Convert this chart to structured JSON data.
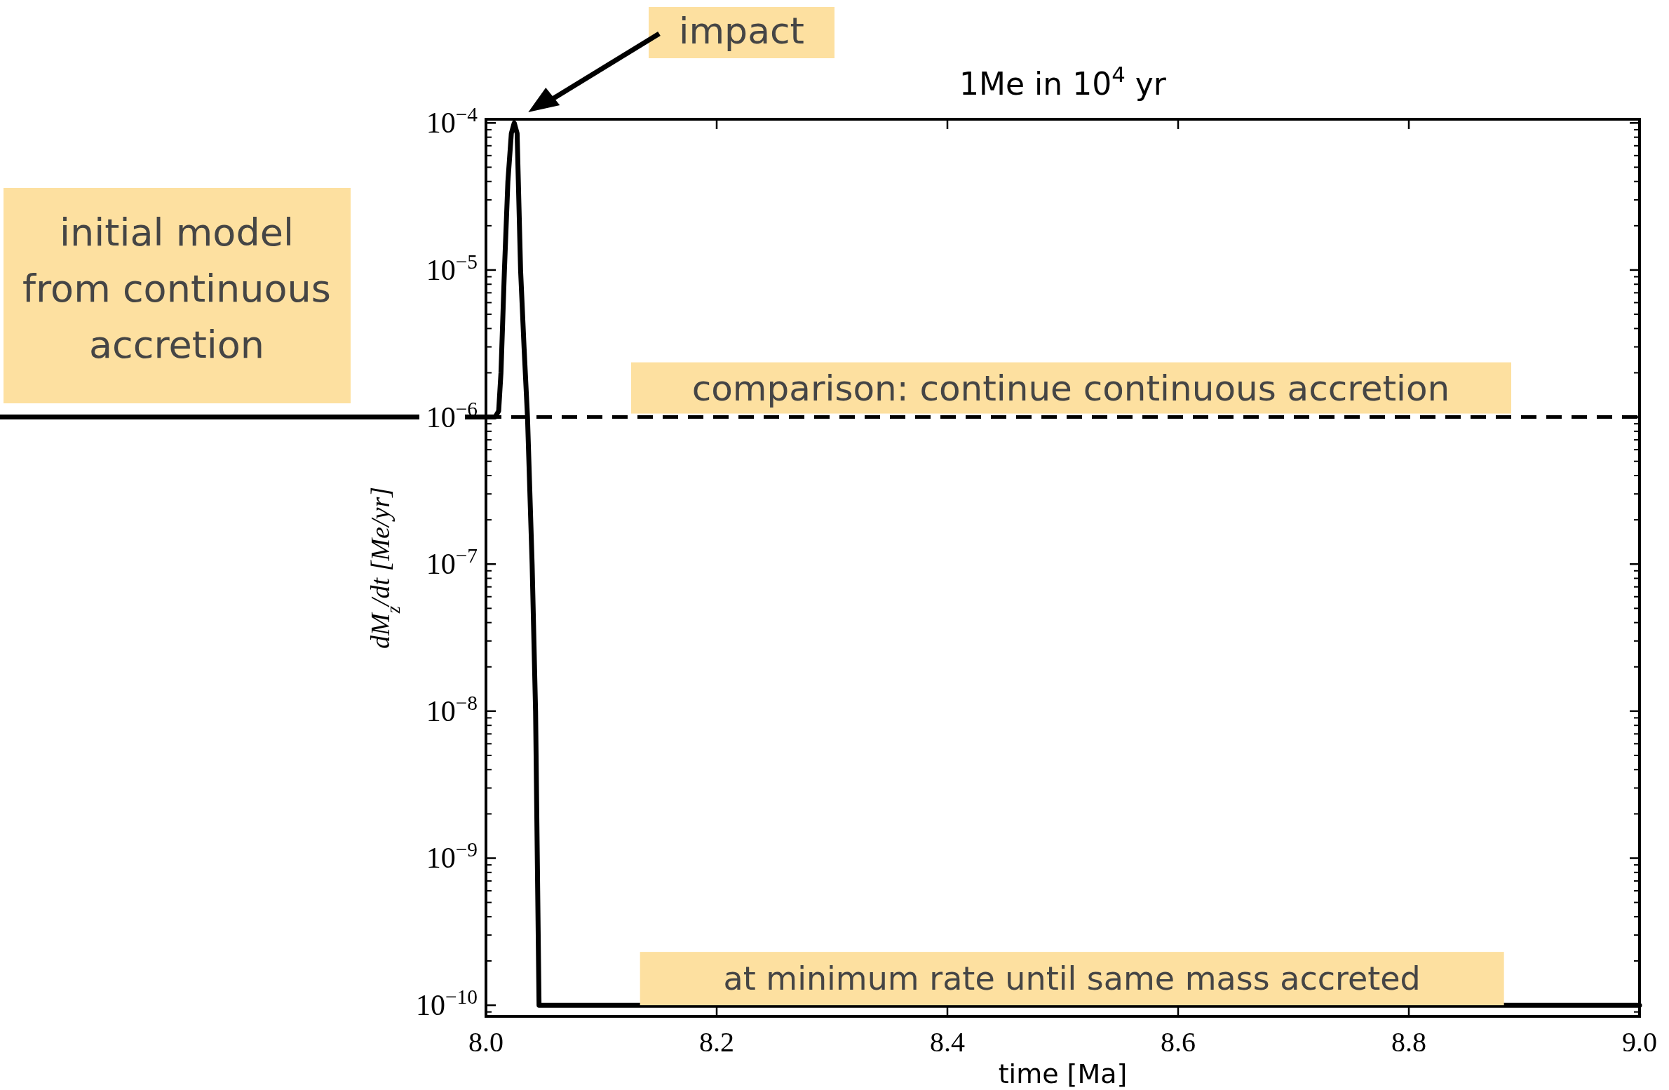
{
  "chart_data": {
    "type": "line",
    "title": "1Me in 10$^{4}$ yr",
    "xlabel": "time [Ma]",
    "ylabel": "dM$_{z}$/dt  [Me/yr]",
    "log": "y",
    "xlim": [
      8.0,
      9.0
    ],
    "ylim": [
      8.4e-11,
      0.000106
    ],
    "xticks": [
      {
        "value": 8.0,
        "label": "8.0"
      },
      {
        "value": 8.2,
        "label": "8.2"
      },
      {
        "value": 8.4,
        "label": "8.4"
      },
      {
        "value": 8.6,
        "label": "8.6"
      },
      {
        "value": 8.8,
        "label": "8.8"
      },
      {
        "value": 9.0,
        "label": "9.0"
      }
    ],
    "yticks": [
      {
        "value": 1e-10,
        "label": "10$^{−10}$"
      },
      {
        "value": 1e-09,
        "label": "10$^{−9}$"
      },
      {
        "value": 1e-08,
        "label": "10$^{−8}$"
      },
      {
        "value": 1e-07,
        "label": "10$^{−7}$"
      },
      {
        "value": 1e-06,
        "label": "10$^{−6}$"
      },
      {
        "value": 1e-05,
        "label": "10$^{−5}$"
      },
      {
        "value": 0.0001,
        "label": "10$^{−4}$"
      }
    ],
    "series": [
      {
        "color": "#000000",
        "x": [
          8.0,
          8.008,
          8.011,
          8.013,
          8.016,
          8.019,
          8.022,
          8.0245,
          8.027,
          8.03,
          8.033,
          8.036,
          8.04,
          8.043,
          8.046,
          9.0
        ],
        "values": [
          1e-06,
          1e-06,
          1.1e-06,
          2e-06,
          1e-05,
          4e-05,
          8.5e-05,
          0.0001,
          8.5e-05,
          1e-05,
          3e-06,
          1e-06,
          1e-07,
          1e-08,
          1e-10,
          1e-10
        ]
      }
    ],
    "line_style": "solid",
    "marker": "none",
    "grid": false,
    "ref_lines": [
      {
        "axis": "y",
        "value": 1e-06,
        "label": "comparison: continue continuous accretion",
        "line_style": "dashed",
        "color": "#000000"
      }
    ],
    "annotations": [
      "impact",
      "initial model from continuous accretion",
      {
        "text": "at minimum rate until same mass accreted",
        "x": 8.508,
        "y": 1e-10
      }
    ]
  }
}
